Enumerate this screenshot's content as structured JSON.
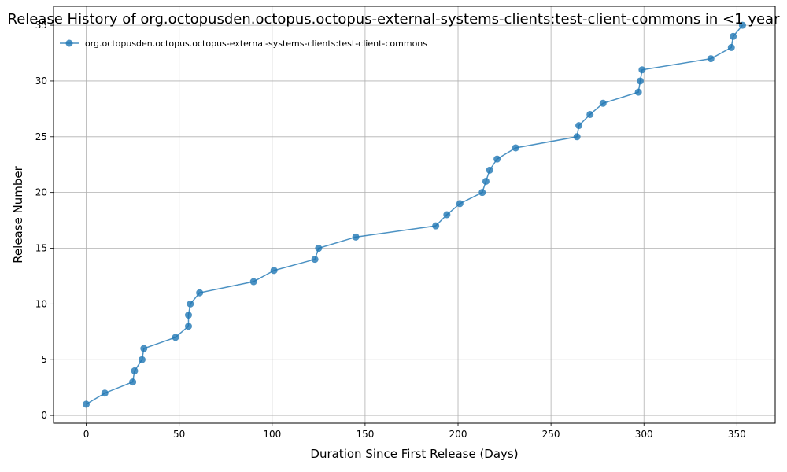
{
  "chart_data": {
    "type": "line",
    "title": "Release History of org.octopusden.octopus.octopus-external-systems-clients:test-client-commons in <1 year",
    "xlabel": "Duration Since First Release (Days)",
    "ylabel": "Release Number",
    "xlim": [
      -17.6,
      370.6
    ],
    "ylim": [
      -0.7,
      36.7
    ],
    "xticks": [
      0,
      50,
      100,
      150,
      200,
      250,
      300,
      350
    ],
    "yticks": [
      0,
      5,
      10,
      15,
      20,
      25,
      30,
      35
    ],
    "grid": true,
    "legend_position": "top-left",
    "series": [
      {
        "name": "org.octopusden.octopus.octopus-external-systems-clients:test-client-commons",
        "color": "#1f77b4",
        "marker": "circle",
        "x": [
          0,
          10,
          25,
          26,
          30,
          31,
          48,
          55,
          55,
          56,
          61,
          90,
          101,
          123,
          125,
          145,
          188,
          194,
          201,
          213,
          215,
          217,
          221,
          231,
          264,
          265,
          271,
          278,
          297,
          298,
          299,
          336,
          347,
          348,
          353
        ],
        "y": [
          1,
          2,
          3,
          4,
          5,
          6,
          7,
          8,
          9,
          10,
          11,
          12,
          13,
          14,
          15,
          16,
          17,
          18,
          19,
          20,
          21,
          22,
          23,
          24,
          25,
          26,
          27,
          28,
          29,
          30,
          31,
          32,
          33,
          34,
          35
        ]
      }
    ]
  }
}
